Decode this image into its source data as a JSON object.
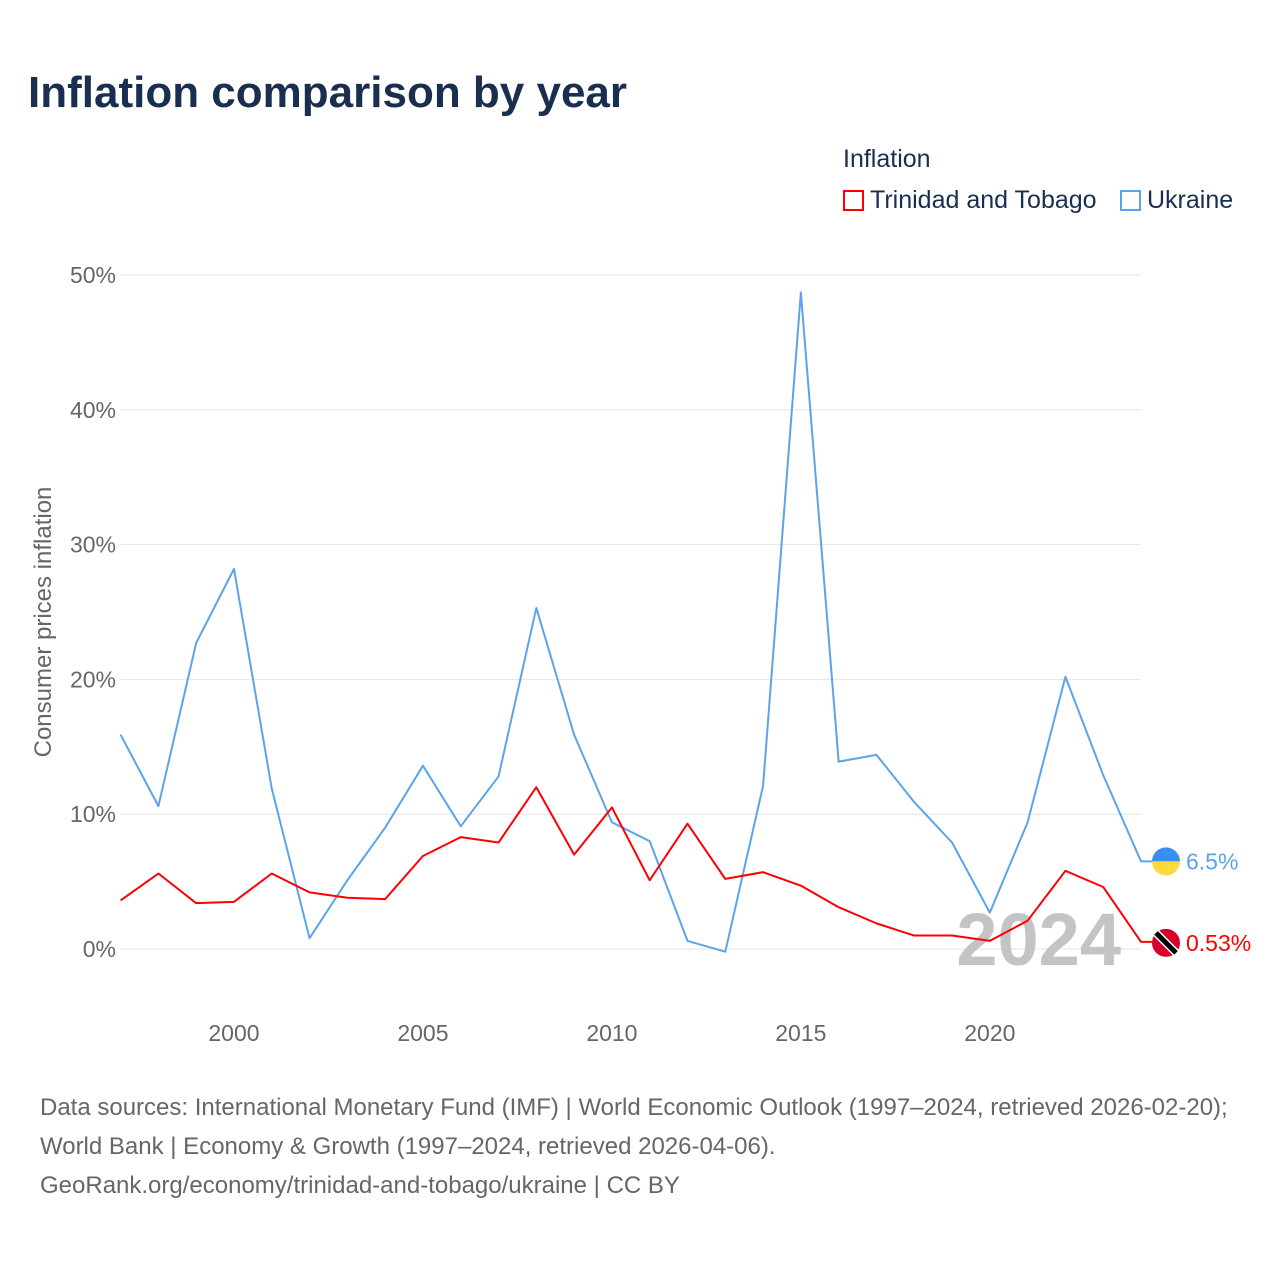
{
  "title": "Inflation comparison by year",
  "legend": {
    "title": "Inflation",
    "items": [
      {
        "label": "Trinidad and Tobago",
        "color": "#ff0000"
      },
      {
        "label": "Ukraine",
        "color": "#5ba4ea"
      }
    ]
  },
  "footer": {
    "sources": "Data sources: International Monetary Fund (IMF) | World Economic Outlook (1997–2024, retrieved 2026-02-20); World Bank | Economy & Growth (1997–2024, retrieved 2026-04-06).",
    "credit": "GeoRank.org/economy/trinidad-and-tobago/ukraine | CC BY"
  },
  "chart_data": {
    "type": "line",
    "title": "Inflation comparison by year",
    "ylabel": "Consumer prices inflation",
    "xlabel": "",
    "ylim": [
      0,
      50
    ],
    "xlim": [
      1997,
      2024
    ],
    "yticks": [
      0,
      10,
      20,
      30,
      40,
      50
    ],
    "ytick_labels": [
      "0%",
      "10%",
      "20%",
      "30%",
      "40%",
      "50%"
    ],
    "xticks": [
      2000,
      2005,
      2010,
      2015,
      2020
    ],
    "xtick_labels": [
      "2000",
      "2005",
      "2010",
      "2015",
      "2020"
    ],
    "grid": true,
    "legend_position": "top-right",
    "watermark_year": "2024",
    "x": [
      1997,
      1998,
      1999,
      2000,
      2001,
      2002,
      2003,
      2004,
      2005,
      2006,
      2007,
      2008,
      2009,
      2010,
      2011,
      2012,
      2013,
      2014,
      2015,
      2016,
      2017,
      2018,
      2019,
      2020,
      2021,
      2022,
      2023,
      2024
    ],
    "series": [
      {
        "name": "Trinidad and Tobago",
        "color": "#ff0000",
        "end_label": "0.53%",
        "values": [
          3.6,
          5.6,
          3.4,
          3.5,
          5.6,
          4.2,
          3.8,
          3.7,
          6.9,
          8.3,
          7.9,
          12.0,
          7.0,
          10.5,
          5.1,
          9.3,
          5.2,
          5.7,
          4.7,
          3.1,
          1.9,
          1.0,
          1.0,
          0.6,
          2.1,
          5.8,
          4.6,
          0.53
        ]
      },
      {
        "name": "Ukraine",
        "color": "#5ba4ea",
        "end_label": "6.5%",
        "values": [
          15.9,
          10.6,
          22.7,
          28.2,
          11.9,
          0.8,
          5.1,
          9.0,
          13.6,
          9.1,
          12.8,
          25.3,
          15.9,
          9.4,
          8.0,
          0.6,
          -0.2,
          12.1,
          48.7,
          13.9,
          14.4,
          10.9,
          7.9,
          2.7,
          9.4,
          20.2,
          12.9,
          6.5
        ]
      }
    ]
  }
}
